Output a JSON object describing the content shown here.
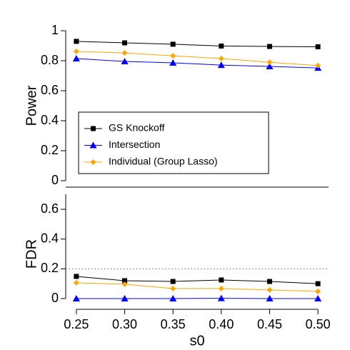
{
  "chart_data": [
    {
      "type": "line",
      "ylabel": "Power",
      "x": [
        0.25,
        0.3,
        0.35,
        0.4,
        0.45,
        0.5
      ],
      "xlim": [
        0.239,
        0.511
      ],
      "ylim": [
        0,
        1
      ],
      "yticks": [
        0,
        0.2,
        0.4,
        0.6,
        0.8,
        1
      ],
      "legend": "center-left",
      "series": [
        {
          "name": "GS Knockoff",
          "color": "#000000",
          "marker": "square",
          "values": [
            0.929,
            0.919,
            0.91,
            0.898,
            0.895,
            0.893
          ]
        },
        {
          "name": "Intersection",
          "color": "#0000ff",
          "marker": "triangle",
          "values": [
            0.814,
            0.795,
            0.786,
            0.771,
            0.762,
            0.752
          ]
        },
        {
          "name": "Individual (Group Lasso)",
          "color": "#ffa500",
          "marker": "diamond",
          "values": [
            0.862,
            0.852,
            0.833,
            0.814,
            0.79,
            0.767
          ]
        }
      ]
    },
    {
      "type": "line",
      "ylabel": "FDR",
      "xlabel": "s0",
      "x": [
        0.25,
        0.3,
        0.35,
        0.4,
        0.45,
        0.5
      ],
      "xlim": [
        0.239,
        0.511
      ],
      "ylim": [
        0,
        0.6
      ],
      "yticks": [
        0,
        0.2,
        0.4,
        0.6
      ],
      "xticks": [
        0.25,
        {
          "value": 0.3,
          "label": "0.30"
        },
        0.35,
        {
          "value": 0.4,
          "label": "0.40"
        },
        0.45,
        {
          "value": 0.5,
          "label": "0.50"
        }
      ],
      "hline": 0.2,
      "series": [
        {
          "name": "GS Knockoff",
          "color": "#000000",
          "marker": "square",
          "values": [
            0.149,
            0.12,
            0.115,
            0.125,
            0.115,
            0.1
          ]
        },
        {
          "name": "Intersection",
          "color": "#0000ff",
          "marker": "triangle",
          "values": [
            0,
            0,
            0,
            0.002,
            0,
            0
          ]
        },
        {
          "name": "Individual (Group Lasso)",
          "color": "#ffa500",
          "marker": "diamond",
          "values": [
            0.106,
            0.096,
            0.067,
            0.067,
            0.058,
            0.048
          ]
        }
      ]
    }
  ]
}
